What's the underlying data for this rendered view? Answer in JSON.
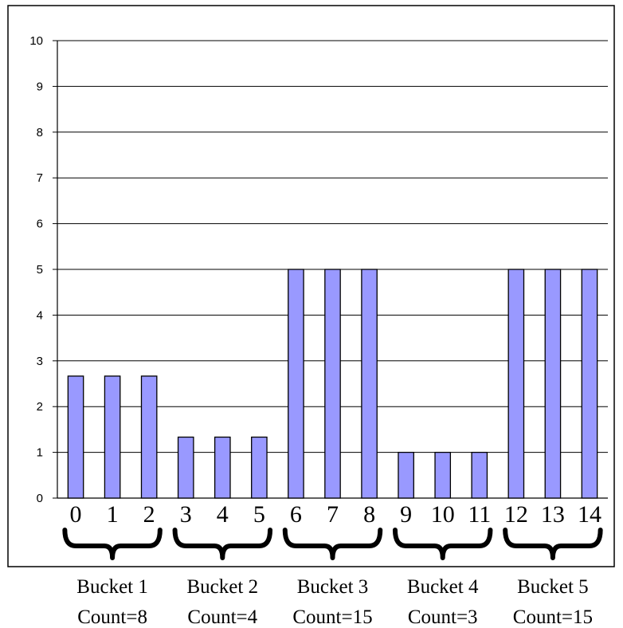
{
  "chart_data": {
    "type": "bar",
    "categories": [
      "0",
      "1",
      "2",
      "3",
      "4",
      "5",
      "6",
      "7",
      "8",
      "9",
      "10",
      "11",
      "12",
      "13",
      "14"
    ],
    "values": [
      2.667,
      2.667,
      2.667,
      1.333,
      1.333,
      1.333,
      5,
      5,
      5,
      1,
      1,
      1,
      5,
      5,
      5
    ],
    "ylim": [
      0,
      10
    ],
    "yticks": [
      "0",
      "1",
      "2",
      "3",
      "4",
      "5",
      "6",
      "7",
      "8",
      "9",
      "10"
    ],
    "grid": true,
    "bar_color": "#9999ff",
    "buckets": [
      {
        "label": "Bucket 1",
        "count": "Count=8",
        "categories": [
          0,
          2
        ]
      },
      {
        "label": "Bucket 2",
        "count": "Count=4",
        "categories": [
          3,
          5
        ]
      },
      {
        "label": "Bucket 3",
        "count": "Count=15",
        "categories": [
          6,
          8
        ]
      },
      {
        "label": "Bucket 4",
        "count": "Count=3",
        "categories": [
          9,
          11
        ]
      },
      {
        "label": "Bucket 5",
        "count": "Count=15",
        "categories": [
          12,
          14
        ]
      }
    ]
  }
}
